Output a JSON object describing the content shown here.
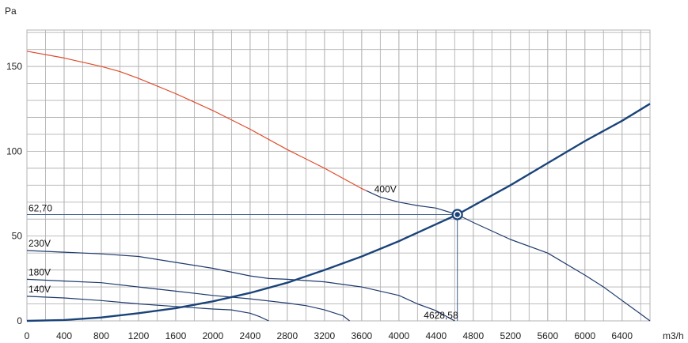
{
  "chart_data": {
    "type": "line",
    "xlabel": "m3/h",
    "ylabel": "Pa",
    "xlim": [
      0,
      6700
    ],
    "ylim": [
      0,
      170
    ],
    "x_ticks": [
      0,
      400,
      800,
      1200,
      1600,
      2000,
      2400,
      2800,
      3200,
      3600,
      4000,
      4400,
      4800,
      5200,
      5600,
      6000,
      6400
    ],
    "y_ticks": [
      0,
      50,
      100,
      150
    ],
    "grid": true,
    "colors": {
      "grid": "#b3b3b3",
      "fan_curve": "#1f3b6e",
      "system_curve": "#1a4379",
      "high_speed_segment": "#e04a2a",
      "operating_point": "#1a4379",
      "guide_lines": "#3b5e8c"
    },
    "series": [
      {
        "name": "400V",
        "role": "fan",
        "x": [
          0,
          400,
          800,
          1000,
          1200,
          1600,
          2000,
          2400,
          2800,
          3200,
          3600,
          3800,
          4000,
          4200,
          4400,
          4628,
          4800,
          5200,
          5600,
          6000,
          6200,
          6400,
          6600,
          6700
        ],
        "y": [
          159,
          155,
          150,
          147,
          143,
          134,
          124,
          113,
          101,
          90,
          78,
          73,
          70,
          68,
          66.5,
          62.7,
          58,
          48,
          40,
          27,
          20,
          12,
          4,
          0
        ],
        "red_until_x": 3650
      },
      {
        "name": "230V",
        "role": "fan",
        "x": [
          0,
          400,
          800,
          1200,
          1600,
          2000,
          2400,
          2600,
          2800,
          3200,
          3600,
          4000,
          4200,
          4400,
          4600
        ],
        "y": [
          41.5,
          40.5,
          39.5,
          38,
          34.5,
          31,
          26.5,
          25,
          24.5,
          23,
          20,
          15,
          10,
          6,
          0
        ]
      },
      {
        "name": "180V",
        "role": "fan",
        "x": [
          0,
          400,
          800,
          1200,
          1600,
          2000,
          2400,
          2800,
          3000,
          3200,
          3400,
          3470
        ],
        "y": [
          24.5,
          23.5,
          22.5,
          20,
          17.5,
          15,
          13,
          10.5,
          9,
          6.5,
          3,
          0
        ]
      },
      {
        "name": "140V",
        "role": "fan",
        "x": [
          0,
          400,
          800,
          1200,
          1600,
          2000,
          2200,
          2400,
          2500,
          2600
        ],
        "y": [
          14.5,
          13.5,
          12,
          10,
          8.5,
          7,
          6.5,
          4.5,
          2.5,
          0
        ]
      },
      {
        "name": "",
        "role": "system",
        "x": [
          0,
          400,
          800,
          1200,
          1600,
          2000,
          2400,
          2800,
          3200,
          3600,
          4000,
          4400,
          4628,
          5200,
          5600,
          6000,
          6400,
          6700
        ],
        "y": [
          0,
          0.5,
          2,
          4.5,
          7.5,
          11.5,
          16.5,
          22.5,
          30,
          38,
          47,
          57,
          62.7,
          80,
          93,
          106,
          118,
          128
        ]
      }
    ],
    "operating_point": {
      "x": 4628.58,
      "y": 62.7
    },
    "annotations": {
      "op_x_label": "4628,58",
      "op_y_label": "62,70"
    }
  }
}
